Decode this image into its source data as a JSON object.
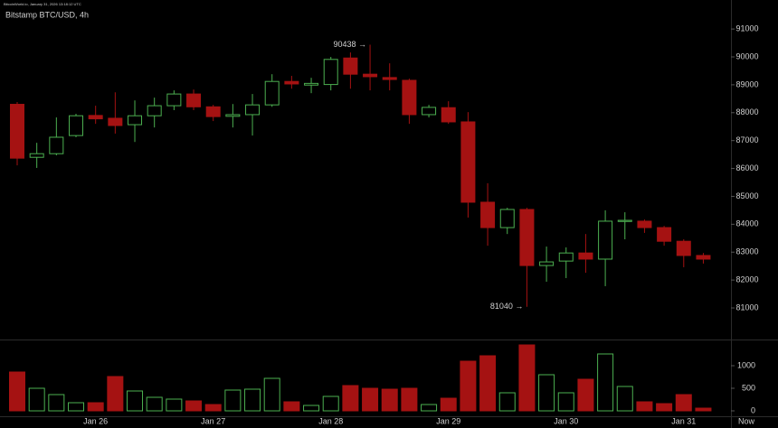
{
  "chart_data": {
    "type": "candlestick",
    "title": "Bitstamp BTC/USD, 4h",
    "subtitle": "BitcoinWorld.io, January 31, 2026 13:18:12 UTC",
    "categories": [
      null,
      null,
      null,
      null,
      "Jan 26",
      null,
      null,
      null,
      null,
      null,
      "Jan 27",
      null,
      null,
      null,
      null,
      null,
      "Jan 28",
      null,
      null,
      null,
      null,
      null,
      "Jan 29",
      null,
      null,
      null,
      null,
      null,
      "Jan 30",
      null,
      null,
      null,
      null,
      null,
      "Jan 31",
      null
    ],
    "x_end_label": "Now",
    "up_color": "#4caf50",
    "down_color": "#a51212",
    "open": [
      88300,
      86400,
      86530,
      87180,
      87900,
      87800,
      87570,
      87890,
      88250,
      88670,
      88210,
      87870,
      87930,
      88280,
      89120,
      88990,
      89010,
      89960,
      89380,
      89260,
      89160,
      87930,
      88180,
      87670,
      84790,
      83880,
      84530,
      82520,
      82680,
      82970,
      82750,
      84100,
      84110,
      83880,
      83390,
      82880
    ],
    "high": [
      88380,
      86920,
      87830,
      87960,
      88250,
      88730,
      88440,
      88540,
      88800,
      88830,
      88280,
      88310,
      88670,
      89380,
      89320,
      89250,
      90000,
      90160,
      90438,
      89770,
      89220,
      88280,
      88410,
      88020,
      85470,
      84590,
      84590,
      83200,
      83170,
      83650,
      84500,
      84430,
      84170,
      83940,
      83460,
      82970
    ],
    "low": [
      86110,
      86020,
      86470,
      87120,
      87600,
      87250,
      86950,
      87470,
      88090,
      88090,
      87700,
      87470,
      87180,
      88210,
      88860,
      88700,
      88800,
      88860,
      88800,
      88800,
      87600,
      87830,
      87600,
      84240,
      83230,
      83650,
      81040,
      81940,
      82070,
      82260,
      81780,
      83460,
      83690,
      83230,
      82460,
      82590
    ],
    "close": [
      86370,
      86530,
      87120,
      87890,
      87780,
      87540,
      87890,
      88250,
      88670,
      88210,
      87860,
      87930,
      88280,
      89120,
      89030,
      89050,
      89910,
      89380,
      89290,
      89190,
      87930,
      88190,
      87670,
      84790,
      83880,
      84530,
      82520,
      82650,
      82970,
      82750,
      84110,
      84140,
      83880,
      83390,
      82880,
      82750
    ],
    "volume": [
      860,
      500,
      360,
      180,
      180,
      760,
      440,
      300,
      260,
      220,
      140,
      460,
      480,
      720,
      200,
      120,
      320,
      560,
      500,
      480,
      500,
      140,
      280,
      1100,
      1220,
      400,
      1460,
      800,
      400,
      700,
      1260,
      540,
      200,
      160,
      360,
      60
    ],
    "ylim": [
      79900,
      92040
    ],
    "yticks": [
      81000,
      82000,
      83000,
      84000,
      85000,
      86000,
      87000,
      88000,
      89000,
      90000,
      91000
    ],
    "y2lim": [
      -140,
      1540
    ],
    "y2ticks": [
      0,
      500,
      1000
    ],
    "high_label": {
      "value": 90438,
      "label": "90438 →"
    },
    "low_label": {
      "value": 81040,
      "label": "81040 →"
    }
  }
}
